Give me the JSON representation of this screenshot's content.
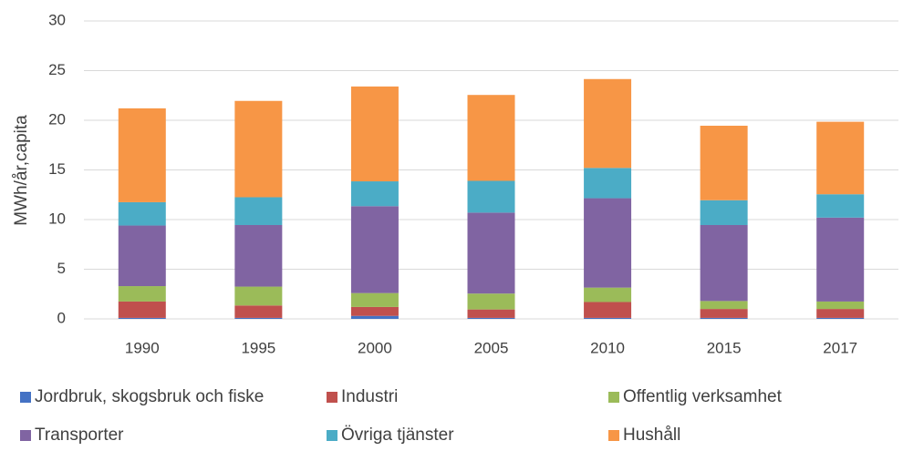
{
  "chart_data": {
    "type": "stacked_bar",
    "y_label": "MWh/år,capita",
    "categories": [
      "1990",
      "1995",
      "2000",
      "2005",
      "2010",
      "2015",
      "2017"
    ],
    "series": [
      {
        "name": "Jordbruk, skogsbruk och fiske",
        "color": "#4472c4",
        "values": [
          0.1,
          0.1,
          0.3,
          0.1,
          0.1,
          0.1,
          0.1
        ]
      },
      {
        "name": "Industri",
        "color": "#c0504d",
        "values": [
          1.65,
          1.25,
          0.9,
          0.85,
          1.6,
          0.9,
          0.9
        ]
      },
      {
        "name": "Offentlig verksamhet",
        "color": "#9bbb59",
        "values": [
          1.55,
          1.9,
          1.4,
          1.6,
          1.45,
          0.8,
          0.75
        ]
      },
      {
        "name": "Transporter",
        "color": "#8064a2",
        "values": [
          6.1,
          6.2,
          8.75,
          8.15,
          9.0,
          7.65,
          8.45
        ]
      },
      {
        "name": "Övriga tjänster",
        "color": "#4bacc6",
        "values": [
          2.35,
          2.8,
          2.5,
          3.2,
          3.05,
          2.5,
          2.35
        ]
      },
      {
        "name": "Hushåll",
        "color": "#f79646",
        "values": [
          9.45,
          9.7,
          9.55,
          8.65,
          8.95,
          7.5,
          7.3
        ]
      }
    ],
    "ylim": [
      0,
      30
    ],
    "yticks": [
      0,
      5,
      10,
      15,
      20,
      25,
      30
    ],
    "grid": true,
    "legend": "bottom"
  }
}
